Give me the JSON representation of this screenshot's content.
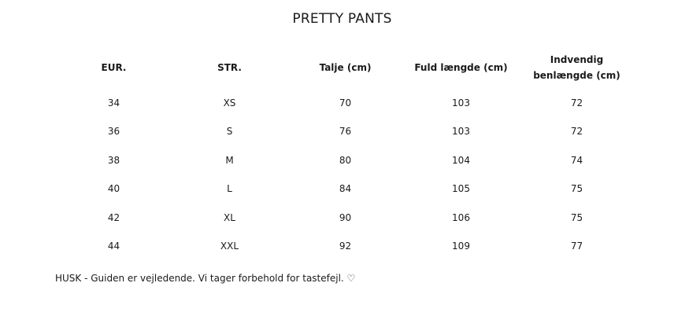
{
  "title": "PRETTY PANTS",
  "table": {
    "headers": [
      "EUR.",
      "STR.",
      "Talje (cm)",
      "Fuld længde (cm)",
      "Indvendig benlængde (cm)"
    ],
    "rows": [
      [
        "34",
        "XS",
        "70",
        "103",
        "72"
      ],
      [
        "36",
        "S",
        "76",
        "103",
        "72"
      ],
      [
        "38",
        "M",
        "80",
        "104",
        "74"
      ],
      [
        "40",
        "L",
        "84",
        "105",
        "75"
      ],
      [
        "42",
        "XL",
        "90",
        "106",
        "75"
      ],
      [
        "44",
        "XXL",
        "92",
        "109",
        "77"
      ]
    ]
  },
  "note": "HUSK - Guiden er vejledende. Vi tager forbehold for tastefejl. ♡"
}
